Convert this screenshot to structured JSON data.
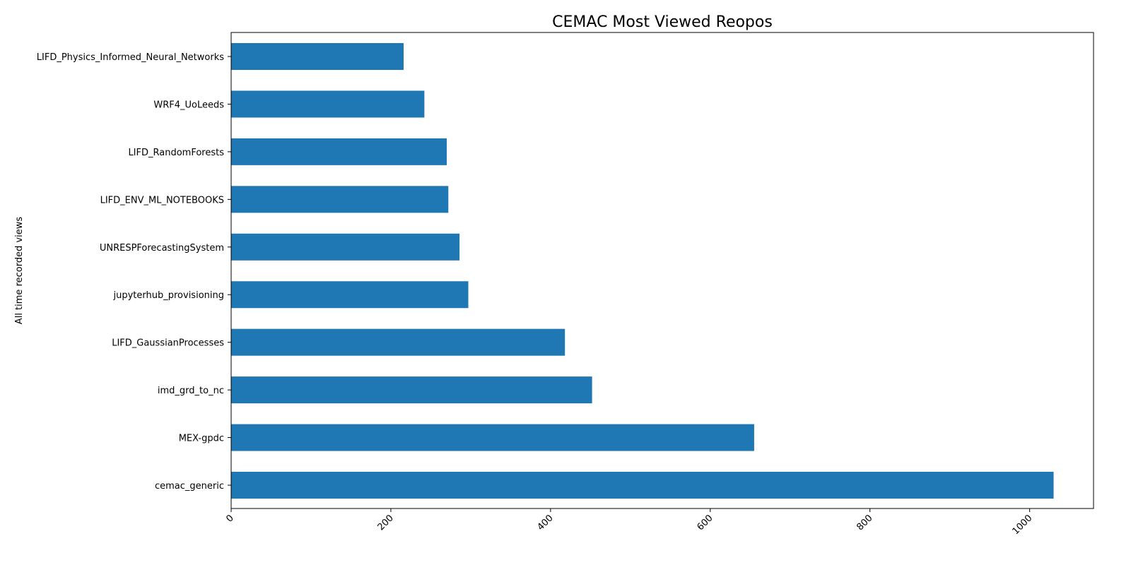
{
  "chart_data": {
    "type": "bar",
    "orientation": "horizontal",
    "title": "CEMAC Most Viewed Reopos",
    "xlabel": "",
    "ylabel": "All time recorded views",
    "categories": [
      "cemac_generic",
      "MEX-gpdc",
      "imd_grd_to_nc",
      "LIFD_GaussianProcesses",
      "jupyterhub_provisioning",
      "UNRESPForecastingSystem",
      "LIFD_ENV_ML_NOTEBOOKS",
      "LIFD_RandomForests",
      "WRF4_UoLeeds",
      "LIFD_Physics_Informed_Neural_Networks"
    ],
    "values": [
      1030,
      655,
      452,
      418,
      297,
      286,
      272,
      270,
      242,
      216
    ],
    "xlim": [
      0,
      1080
    ],
    "xticks": [
      0,
      200,
      400,
      600,
      800,
      1000
    ],
    "xtick_labels": [
      "0",
      "200",
      "400",
      "600",
      "800",
      "1000"
    ],
    "grid": false,
    "legend": "none",
    "color": "#1f77b4"
  }
}
